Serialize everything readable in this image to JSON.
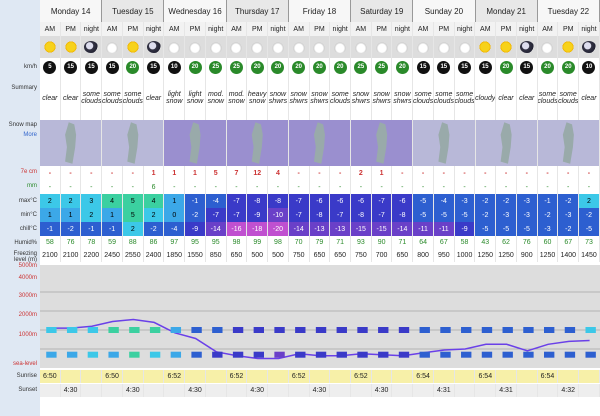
{
  "days": [
    {
      "name": "Monday 14",
      "ampm": 3
    },
    {
      "name": "Tuesday 15",
      "ampm": 3
    },
    {
      "name": "Wednesday 16",
      "ampm": 3
    },
    {
      "name": "Thursday 17",
      "ampm": 3
    },
    {
      "name": "Friday 18",
      "ampm": 3
    },
    {
      "name": "Saturday 19",
      "ampm": 3
    },
    {
      "name": "Sunday 20",
      "ampm": 3
    },
    {
      "name": "Monday 21",
      "ampm": 3
    },
    {
      "name": "Tuesday 22",
      "ampm": 3
    }
  ],
  "periods": [
    "AM",
    "PM",
    "night"
  ],
  "icons": [
    "sun",
    "sun",
    "moon",
    "cloud",
    "sun",
    "moon",
    "cloud",
    "cloud",
    "cloud",
    "cloud",
    "cloud",
    "cloud",
    "cloud",
    "cloud",
    "cloud",
    "cloud",
    "cloud",
    "cloud",
    "cloud",
    "cloud",
    "cloud",
    "sun",
    "sun",
    "moon",
    "cloud",
    "sun",
    "moon"
  ],
  "labels": {
    "wind": "km/h",
    "summary": "Summary",
    "snowmap": "Snow map",
    "more": "More",
    "snow": "7e cm",
    "rain": "mm",
    "max": "max°C",
    "min": "min°C",
    "chill": "chill°C",
    "humid": "Humid%",
    "freezing": "Freezing level (m)",
    "sunrise": "Sunrise",
    "sunset": "Sunset",
    "sea": "sea-level",
    "alt": [
      "5000m",
      "4000m",
      "3000m",
      "2000m",
      "1000m"
    ]
  },
  "wind": [
    "5",
    "15",
    "15",
    "15",
    "20",
    "15",
    "10",
    "20",
    "25",
    "25",
    "20",
    "20",
    "20",
    "20",
    "20",
    "25",
    "25",
    "20",
    "15",
    "15",
    "15",
    "15",
    "20",
    "15",
    "20",
    "20",
    "10"
  ],
  "summary": [
    "clear",
    "clear",
    "some clouds",
    "some clouds",
    "some clouds",
    "clear",
    "light snow",
    "light snow",
    "mod. snow",
    "mod. snow",
    "heavy snow",
    "snow shwrs",
    "snow shwrs",
    "snow shwrs",
    "some clouds",
    "snow shwrs",
    "snow shwrs",
    "snow shwrs",
    "some clouds",
    "some clouds",
    "some clouds",
    "cloudy",
    "clear",
    "clear",
    "some clouds",
    "some clouds",
    "clear"
  ],
  "snow": [
    "-",
    "-",
    "-",
    "-",
    "-",
    "1",
    "1",
    "1",
    "5",
    "7",
    "12",
    "4",
    "-",
    "-",
    "-",
    "2",
    "1",
    "-",
    "-",
    "-",
    "-",
    "-",
    "-",
    "-",
    "-",
    "-",
    "-"
  ],
  "rain": [
    "-",
    "-",
    "-",
    "-",
    "-",
    "6",
    "-",
    "-",
    "-",
    "-",
    "-",
    "-",
    "-",
    "-",
    "-",
    "-",
    "-",
    "-",
    "-",
    "-",
    "-",
    "-",
    "-",
    "-",
    "-",
    "-",
    "-"
  ],
  "max": [
    "2",
    "2",
    "3",
    "4",
    "5",
    "4",
    "1",
    "-1",
    "-4",
    "-7",
    "-8",
    "-8",
    "-7",
    "-6",
    "-6",
    "-6",
    "-7",
    "-6",
    "-5",
    "-4",
    "-3",
    "-2",
    "-2",
    "-3",
    "-1",
    "-2",
    "2"
  ],
  "min": [
    "1",
    "1",
    "2",
    "1",
    "5",
    "2",
    "0",
    "-2",
    "-7",
    "-7",
    "-9",
    "-10",
    "-7",
    "-8",
    "-7",
    "-8",
    "-7",
    "-8",
    "-5",
    "-5",
    "-5",
    "-2",
    "-3",
    "-3",
    "-2",
    "-3",
    "-2"
  ],
  "chill": [
    "-1",
    "-2",
    "-1",
    "-1",
    "2",
    "-2",
    "-4",
    "-9",
    "-14",
    "-16",
    "-18",
    "-20",
    "-14",
    "-13",
    "-13",
    "-15",
    "-15",
    "-14",
    "-11",
    "-11",
    "-9",
    "-5",
    "-5",
    "-5",
    "-3",
    "-2",
    "-5"
  ],
  "humid": [
    "58",
    "76",
    "78",
    "59",
    "88",
    "86",
    "97",
    "95",
    "95",
    "98",
    "99",
    "98",
    "70",
    "79",
    "71",
    "93",
    "90",
    "71",
    "64",
    "67",
    "58",
    "43",
    "62",
    "76",
    "60",
    "67",
    "73"
  ],
  "freezing": [
    "2100",
    "2100",
    "2200",
    "2450",
    "2550",
    "2400",
    "1850",
    "1550",
    "850",
    "650",
    "500",
    "500",
    "750",
    "650",
    "650",
    "750",
    "700",
    "650",
    "800",
    "950",
    "1000",
    "1250",
    "1250",
    "900",
    "1250",
    "1400",
    "1450"
  ],
  "sunrise": [
    "6:50",
    "",
    "",
    "6:50",
    "",
    "",
    "6:52",
    "",
    "",
    "6:52",
    "",
    "",
    "6:52",
    "",
    "",
    "6:52",
    "",
    "",
    "6:54",
    "",
    "",
    "6:54",
    "",
    "",
    "6:54",
    "",
    ""
  ],
  "sunset": [
    "",
    "4:30",
    "",
    "",
    "4:30",
    "",
    "",
    "4:30",
    "",
    "",
    "4:30",
    "",
    "",
    "4:30",
    "",
    "",
    "4:30",
    "",
    "",
    "4:31",
    "",
    "",
    "4:31",
    "",
    "",
    "4:32",
    ""
  ]
}
